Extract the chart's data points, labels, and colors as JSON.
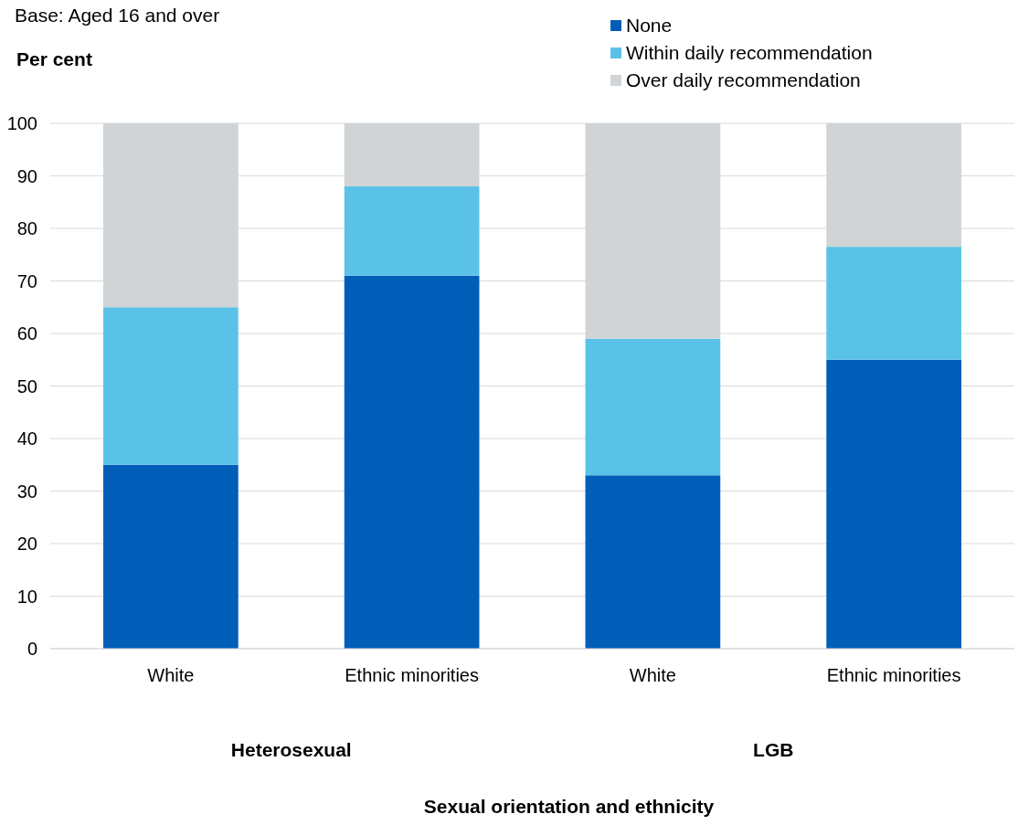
{
  "chart_data": {
    "type": "bar",
    "subtitle": "Base: Aged 16 and over",
    "ylabel": "Per cent",
    "categories": [
      "White",
      "Ethnic minorities",
      "White",
      "Ethnic minorities"
    ],
    "stacked": true,
    "series": [
      {
        "name": "None",
        "color": "#005eb8",
        "values": [
          35,
          71,
          33,
          55
        ]
      },
      {
        "name": "Within daily recommendation",
        "color": "#5bc2e7",
        "values": [
          30,
          17,
          26,
          21.5
        ]
      },
      {
        "name": "Over daily recommendation",
        "color": "#d0d4d6",
        "values": [
          35,
          12,
          41,
          23.5
        ]
      }
    ],
    "ylim": [
      0,
      100
    ],
    "yticks": [
      0,
      10,
      20,
      30,
      40,
      50,
      60,
      70,
      80,
      90,
      100
    ],
    "grid": "y",
    "legend": "top right",
    "annotations": [
      "Heterosexual",
      "LGB",
      "Sexual orientation and ethnicity"
    ]
  }
}
